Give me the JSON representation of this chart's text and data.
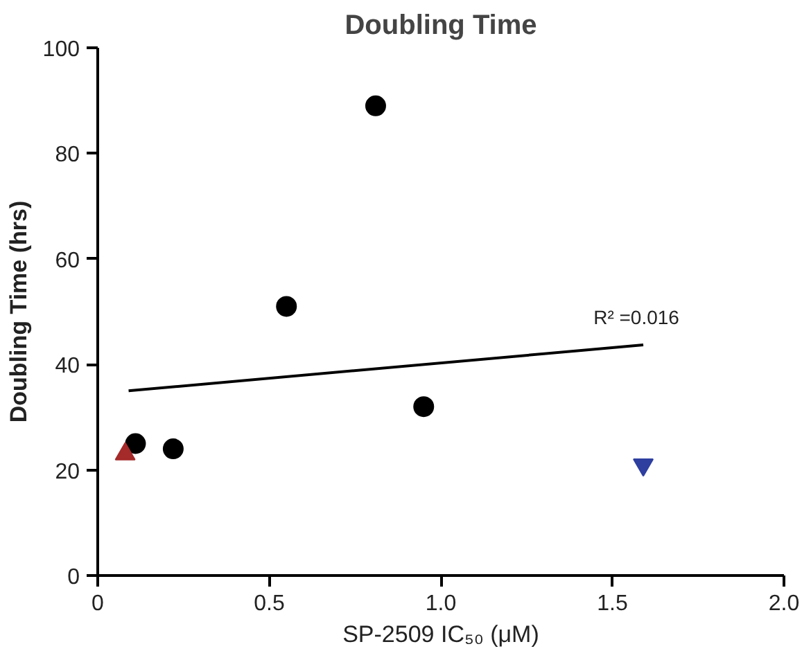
{
  "chart_data": {
    "type": "scatter",
    "title": "Doubling Time",
    "xlabel": "SP-2509 IC₅₀ (μM)",
    "ylabel": "Doubling Time (hrs)",
    "xlim": [
      0,
      2
    ],
    "ylim": [
      0,
      100
    ],
    "xticks": [
      0,
      0.5,
      {
        "value": 1,
        "label": "1.0"
      },
      1.5,
      {
        "value": 2,
        "label": "2.0"
      }
    ],
    "yticks": [
      0,
      20,
      40,
      60,
      80,
      100
    ],
    "grid": false,
    "series": [
      {
        "color": "#000000",
        "marker": "circle",
        "x": [
          0.11,
          0.22,
          0.55,
          0.81,
          0.95
        ],
        "values": [
          25,
          24,
          51,
          89,
          32
        ]
      },
      {
        "color": "#a52a2a",
        "marker": "triangle",
        "x": [
          0.08
        ],
        "values": [
          23
        ]
      },
      {
        "color": "#2e3fa0",
        "marker": "triangle",
        "x": [
          1.59
        ],
        "values": [
          21
        ]
      },
      {
        "type": "line",
        "color": "#000000",
        "line_style": "solid",
        "x": [
          0.09,
          1.59
        ],
        "values": [
          35,
          43.7
        ]
      }
    ],
    "annotations": [
      "R² =0.016"
    ]
  }
}
